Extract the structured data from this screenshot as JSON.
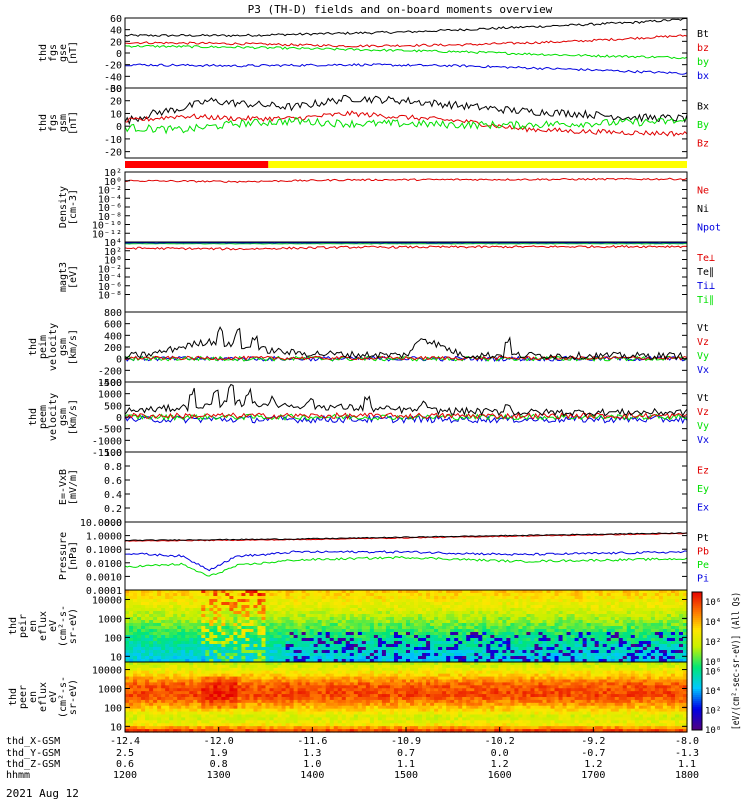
{
  "title": "P3 (TH-D) fields and on-board moments overview",
  "colors": {
    "black": "#000000",
    "red": "#e00000",
    "green": "#00e000",
    "blue": "#0000e0",
    "yellow": "#ffff00"
  },
  "chart_data": [
    {
      "type": "line",
      "panel": "fgs-gse",
      "ylabel": [
        "thd",
        "fgs",
        "gse",
        "[nT]"
      ],
      "ylim": [
        -60,
        60
      ],
      "ticks": [
        -60,
        -40,
        -20,
        0,
        20,
        40,
        60
      ],
      "legend": [
        {
          "name": "Bt",
          "color": "black"
        },
        {
          "name": "bz",
          "color": "red"
        },
        {
          "name": "by",
          "color": "green"
        },
        {
          "name": "bx",
          "color": "blue"
        }
      ],
      "series": [
        {
          "name": "Bt",
          "color": "black",
          "x": [
            0,
            0.1,
            0.2,
            0.3,
            0.4,
            0.5,
            0.6,
            0.7,
            0.8,
            0.9,
            1.0
          ],
          "values": [
            30,
            30,
            30,
            32,
            34,
            36,
            40,
            44,
            48,
            52,
            58
          ],
          "noise": 2
        },
        {
          "name": "bz",
          "color": "red",
          "x": [
            0,
            0.2,
            0.4,
            0.6,
            0.8,
            1.0
          ],
          "values": [
            18,
            16,
            12,
            14,
            20,
            30
          ],
          "noise": 2
        },
        {
          "name": "by",
          "color": "green",
          "x": [
            0,
            0.2,
            0.4,
            0.6,
            0.8,
            1.0
          ],
          "values": [
            12,
            10,
            6,
            2,
            -4,
            -8
          ],
          "noise": 2
        },
        {
          "name": "bx",
          "color": "blue",
          "x": [
            0,
            0.2,
            0.4,
            0.6,
            0.8,
            1.0
          ],
          "values": [
            -20,
            -22,
            -20,
            -22,
            -28,
            -35
          ],
          "noise": 2
        }
      ]
    },
    {
      "type": "line",
      "panel": "fgs-gsm",
      "ylabel": [
        "thd",
        "fgs",
        "gsm",
        "[nT]"
      ],
      "ylim": [
        -25,
        30
      ],
      "ticks": [
        -20,
        -10,
        0,
        10,
        20,
        30
      ],
      "legend": [
        {
          "name": "Bx",
          "color": "black"
        },
        {
          "name": "By",
          "color": "green"
        },
        {
          "name": "Bz",
          "color": "red"
        }
      ],
      "series": [
        {
          "name": "Bx",
          "color": "black",
          "x": [
            0,
            0.05,
            0.1,
            0.15,
            0.2,
            0.3,
            0.4,
            0.5,
            0.6,
            0.7,
            0.8,
            0.9,
            1.0
          ],
          "values": [
            4,
            10,
            14,
            20,
            18,
            15,
            22,
            20,
            16,
            12,
            10,
            7,
            6
          ],
          "noise": 3
        },
        {
          "name": "Bz",
          "color": "red",
          "x": [
            0,
            0.1,
            0.2,
            0.3,
            0.4,
            0.5,
            0.6,
            0.7,
            0.8,
            0.9,
            1.0
          ],
          "values": [
            4,
            8,
            6,
            6,
            10,
            7,
            4,
            -2,
            -4,
            -5,
            -6
          ],
          "noise": 2
        },
        {
          "name": "By",
          "color": "green",
          "x": [
            0,
            0.1,
            0.2,
            0.3,
            0.4,
            0.5,
            0.6,
            0.7,
            0.8,
            0.9,
            1.0
          ],
          "values": [
            -1,
            -3,
            2,
            4,
            2,
            2,
            1,
            1,
            2,
            3,
            4
          ],
          "noise": 3
        }
      ]
    },
    {
      "type": "line",
      "panel": "density",
      "log": true,
      "ylabel": [
        "Density",
        "[cm-3]"
      ],
      "ylim": [
        -14,
        2
      ],
      "ticks": [
        {
          "v": 2,
          "t": "10²"
        },
        {
          "v": 0,
          "t": "10⁰"
        },
        {
          "v": -2,
          "t": "10⁻²"
        },
        {
          "v": -4,
          "t": "10⁻⁴"
        },
        {
          "v": -6,
          "t": "10⁻⁶"
        },
        {
          "v": -8,
          "t": "10⁻⁸"
        },
        {
          "v": -10,
          "t": "10⁻¹⁰"
        },
        {
          "v": -12,
          "t": "10⁻¹²"
        }
      ],
      "legend": [
        {
          "name": "Ne",
          "color": "red"
        },
        {
          "name": "Ni",
          "color": "black"
        },
        {
          "name": "Npot",
          "color": "blue"
        }
      ],
      "series": [
        {
          "name": "Ne",
          "color": "red",
          "x": [
            0,
            0.2,
            0.4,
            1.0
          ],
          "values": [
            0,
            -0.2,
            0.2,
            0.4
          ],
          "noise": 0.2
        }
      ]
    },
    {
      "type": "line",
      "panel": "temperature",
      "log": true,
      "ylabel": [
        "magt3",
        "[eV]"
      ],
      "ylim": [
        -12,
        4
      ],
      "ticks": [
        {
          "v": 4,
          "t": "10⁴"
        },
        {
          "v": 2,
          "t": "10²"
        },
        {
          "v": 0,
          "t": "10⁰"
        },
        {
          "v": -2,
          "t": "10⁻²"
        },
        {
          "v": -4,
          "t": "10⁻⁴"
        },
        {
          "v": -6,
          "t": "10⁻⁶"
        },
        {
          "v": -8,
          "t": "10⁻⁸"
        }
      ],
      "legend": [
        {
          "name": "Te⊥",
          "color": "red"
        },
        {
          "name": "Te∥",
          "color": "black"
        },
        {
          "name": "Ti⊥",
          "color": "blue"
        },
        {
          "name": "Ti∥",
          "color": "green"
        }
      ],
      "series": [
        {
          "name": "Ti∥",
          "color": "green",
          "x": [
            0,
            1
          ],
          "values": [
            3.6,
            3.6
          ],
          "noise": 0.05
        },
        {
          "name": "Ti⊥",
          "color": "blue",
          "x": [
            0,
            1
          ],
          "values": [
            3.8,
            3.8
          ],
          "noise": 0.05
        },
        {
          "name": "Te⊥",
          "color": "red",
          "x": [
            0,
            0.2,
            0.4,
            1
          ],
          "values": [
            2.6,
            2.4,
            2.8,
            3.0
          ],
          "noise": 0.25
        }
      ]
    },
    {
      "type": "line",
      "panel": "peim-velocity",
      "ylabel": [
        "thd",
        "peim",
        "velocity",
        "gsm",
        "[km/s]"
      ],
      "ylim": [
        -400,
        800
      ],
      "ticks": [
        -400,
        -200,
        0,
        200,
        400,
        600,
        800
      ],
      "legend": [
        {
          "name": "Vt",
          "color": "black"
        },
        {
          "name": "Vz",
          "color": "red"
        },
        {
          "name": "Vy",
          "color": "green"
        },
        {
          "name": "Vx",
          "color": "blue"
        }
      ],
      "series": [
        {
          "name": "Vx",
          "color": "blue",
          "x": [
            0,
            1
          ],
          "values": [
            0,
            0
          ],
          "noise": 40
        },
        {
          "name": "Vy",
          "color": "green",
          "x": [
            0,
            1
          ],
          "values": [
            0,
            0
          ],
          "noise": 40
        },
        {
          "name": "Vz",
          "color": "red",
          "x": [
            0,
            1
          ],
          "values": [
            10,
            10
          ],
          "noise": 30
        },
        {
          "name": "Vt",
          "color": "black",
          "x": [
            0,
            0.05,
            0.1,
            0.15,
            0.2,
            0.25,
            0.3,
            0.4,
            0.5,
            0.53,
            0.6,
            0.7,
            0.8,
            1.0
          ],
          "values": [
            40,
            80,
            200,
            300,
            200,
            150,
            100,
            70,
            60,
            350,
            60,
            60,
            50,
            50
          ],
          "noise": 60
        }
      ],
      "spikes": [
        {
          "x": 0.17,
          "v": 550
        },
        {
          "x": 0.2,
          "v": 520
        },
        {
          "x": 0.23,
          "v": 450
        },
        {
          "x": 0.53,
          "v": 400
        },
        {
          "x": 0.68,
          "v": 380
        }
      ]
    },
    {
      "type": "line",
      "panel": "peem-velocity",
      "ylabel": [
        "thd",
        "peem",
        "velocity",
        "gsm",
        "[km/s]"
      ],
      "ylim": [
        -1500,
        1500
      ],
      "ticks": [
        -1500,
        -1000,
        -500,
        0,
        500,
        1000,
        1500
      ],
      "legend": [
        {
          "name": "Vt",
          "color": "black"
        },
        {
          "name": "Vz",
          "color": "red"
        },
        {
          "name": "Vy",
          "color": "green"
        },
        {
          "name": "Vx",
          "color": "blue"
        }
      ],
      "series": [
        {
          "name": "Vx",
          "color": "blue",
          "x": [
            0,
            1
          ],
          "values": [
            -100,
            -100
          ],
          "noise": 150
        },
        {
          "name": "Vy",
          "color": "green",
          "x": [
            0,
            1
          ],
          "values": [
            0,
            0
          ],
          "noise": 120
        },
        {
          "name": "Vz",
          "color": "red",
          "x": [
            0,
            1
          ],
          "values": [
            50,
            50
          ],
          "noise": 120
        },
        {
          "name": "Vt",
          "color": "black",
          "x": [
            0,
            0.1,
            0.2,
            0.3,
            0.4,
            0.5,
            0.6,
            0.7,
            0.8,
            1.0
          ],
          "values": [
            250,
            400,
            600,
            500,
            400,
            300,
            250,
            200,
            200,
            200
          ],
          "noise": 150
        }
      ],
      "spikes": [
        {
          "x": 0.12,
          "v": 1300
        },
        {
          "x": 0.16,
          "v": 1400
        },
        {
          "x": 0.19,
          "v": 1400
        },
        {
          "x": 0.22,
          "v": 1200
        },
        {
          "x": 0.26,
          "v": 900
        },
        {
          "x": 0.33,
          "v": 800
        },
        {
          "x": 0.43,
          "v": 900
        },
        {
          "x": 0.53,
          "v": 700
        },
        {
          "x": 0.68,
          "v": 600
        }
      ]
    },
    {
      "type": "line",
      "panel": "efield",
      "ylabel": [
        "E=-VxB",
        "[mV/m]"
      ],
      "ylim": [
        0,
        1
      ],
      "ticks": [
        {
          "v": 0,
          "t": "0.0"
        },
        {
          "v": 0.2,
          "t": "0.2"
        },
        {
          "v": 0.4,
          "t": "0.4"
        },
        {
          "v": 0.6,
          "t": "0.6"
        },
        {
          "v": 0.8,
          "t": "0.8"
        },
        {
          "v": 1.0,
          "t": "1.0"
        }
      ],
      "legend": [
        {
          "name": "Ez",
          "color": "red"
        },
        {
          "name": "Ey",
          "color": "green"
        },
        {
          "name": "Ex",
          "color": "blue"
        }
      ],
      "series": []
    },
    {
      "type": "line",
      "panel": "pressure",
      "log": true,
      "ylabel": [
        "Pressure",
        "[nPa]"
      ],
      "ylim": [
        -4,
        1
      ],
      "ticks": [
        {
          "v": 1,
          "t": "10.0000"
        },
        {
          "v": 0,
          "t": "1.0000"
        },
        {
          "v": -1,
          "t": "0.1000"
        },
        {
          "v": -2,
          "t": "0.0100"
        },
        {
          "v": -3,
          "t": "0.0010"
        },
        {
          "v": -4,
          "t": "0.0001"
        }
      ],
      "legend": [
        {
          "name": "Pt",
          "color": "black"
        },
        {
          "name": "Pb",
          "color": "red"
        },
        {
          "name": "Pe",
          "color": "green"
        },
        {
          "name": "Pi",
          "color": "blue"
        }
      ],
      "series": [
        {
          "name": "Pb",
          "color": "red",
          "x": [
            0,
            0.3,
            0.6,
            1.0
          ],
          "values": [
            -0.4,
            -0.3,
            -0.1,
            0.15
          ],
          "noise": 0.03
        },
        {
          "name": "Pt",
          "color": "black",
          "x": [
            0,
            0.3,
            0.6,
            1.0
          ],
          "values": [
            -0.35,
            -0.25,
            -0.05,
            0.2
          ],
          "noise": 0.03
        },
        {
          "name": "Pi",
          "color": "blue",
          "x": [
            0,
            0.1,
            0.15,
            0.2,
            0.25,
            0.3,
            0.5,
            0.7,
            1.0
          ],
          "values": [
            -1.3,
            -1.5,
            -2.5,
            -1.5,
            -1.4,
            -1.2,
            -1.2,
            -1.4,
            -1.2
          ],
          "noise": 0.08
        },
        {
          "name": "Pe",
          "color": "green",
          "x": [
            0,
            0.1,
            0.15,
            0.2,
            0.25,
            0.3,
            0.5,
            0.7,
            1.0
          ],
          "values": [
            -2.3,
            -2.1,
            -3.0,
            -2.2,
            -2.0,
            -1.8,
            -1.6,
            -1.9,
            -1.7
          ],
          "noise": 0.08
        }
      ]
    },
    {
      "type": "heatmap",
      "panel": "peir-en-eflux",
      "ylabel": [
        "thd",
        "peir",
        "en",
        "eflux",
        "eV",
        "(cm²-s-",
        "sr-eV)"
      ],
      "ylim": [
        0.7,
        4.5
      ],
      "ticks": [
        {
          "v": 1,
          "t": "10"
        },
        {
          "v": 2,
          "t": "100"
        },
        {
          "v": 3,
          "t": "1000"
        },
        {
          "v": 4,
          "t": "10000"
        }
      ],
      "colorbar": {
        "label": "[eV/(cm²-sec-sr-eV)] (All Qs)",
        "ticks": [
          {
            "v": 0,
            "t": "10⁰"
          },
          {
            "v": 2,
            "t": "10²"
          },
          {
            "v": 4,
            "t": "10⁴"
          },
          {
            "v": 6,
            "t": "10⁶"
          }
        ],
        "range": [
          0,
          7
        ]
      },
      "profile": [
        {
          "e": 4.4,
          "lvl": 5.2
        },
        {
          "e": 3.6,
          "lvl": 4.6
        },
        {
          "e": 2.8,
          "lvl": 3.8
        },
        {
          "e": 2.0,
          "lvl": 3.1
        },
        {
          "e": 1.2,
          "lvl": 2.5
        },
        {
          "e": 0.7,
          "lvl": 2.2
        }
      ]
    },
    {
      "type": "heatmap",
      "panel": "peer-en-eflux",
      "ylabel": [
        "thd",
        "peer",
        "en",
        "eflux",
        "eV",
        "(cm²-s-",
        "sr-eV)"
      ],
      "ylim": [
        0.7,
        4.4
      ],
      "ticks": [
        {
          "v": 1,
          "t": "10"
        },
        {
          "v": 2,
          "t": "100"
        },
        {
          "v": 3,
          "t": "1000"
        },
        {
          "v": 4,
          "t": "10000"
        }
      ],
      "colorbar": {
        "label": "[eV/(cm²-sec-sr-eV)] (All Qs)",
        "ticks": [
          {
            "v": 0,
            "t": "10⁰"
          },
          {
            "v": 2,
            "t": "10²"
          },
          {
            "v": 4,
            "t": "10⁴"
          },
          {
            "v": 6,
            "t": "10⁶"
          }
        ],
        "range": [
          0,
          7
        ]
      },
      "profile": [
        {
          "e": 4.4,
          "lvl": 4.2
        },
        {
          "e": 3.8,
          "lvl": 5.0
        },
        {
          "e": 3.2,
          "lvl": 6.2
        },
        {
          "e": 2.6,
          "lvl": 6.4
        },
        {
          "e": 2.0,
          "lvl": 5.4
        },
        {
          "e": 1.5,
          "lvl": 4.4
        },
        {
          "e": 1.1,
          "lvl": 4.8
        },
        {
          "e": 0.8,
          "lvl": 6.4
        }
      ]
    }
  ],
  "xaxis": {
    "rows": [
      {
        "label": "thd_X-GSM",
        "values": [
          "-12.4",
          "-12.0",
          "-11.6",
          "-10.9",
          "-10.2",
          "-9.2",
          "-8.0"
        ]
      },
      {
        "label": "thd_Y-GSM",
        "values": [
          "2.5",
          "1.9",
          "1.3",
          "0.7",
          "0.0",
          "-0.7",
          "-1.3"
        ]
      },
      {
        "label": "thd_Z-GSM",
        "values": [
          "0.6",
          "0.8",
          "1.0",
          "1.1",
          "1.2",
          "1.2",
          "1.1"
        ]
      },
      {
        "label": "hhmm",
        "values": [
          "1200",
          "1300",
          "1400",
          "1500",
          "1600",
          "1700",
          "1800"
        ]
      }
    ],
    "date": "2021 Aug 12"
  },
  "mode_bar": {
    "segments": [
      {
        "from": 0,
        "to": 0.255,
        "color": "#ff0000"
      },
      {
        "from": 0.255,
        "to": 1,
        "color": "#ffff00"
      }
    ]
  }
}
